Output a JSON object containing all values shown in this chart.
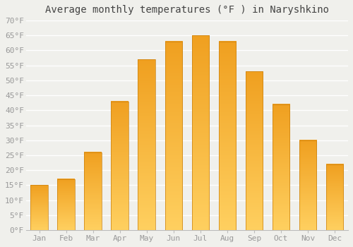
{
  "title": "Average monthly temperatures (°F ) in Naryshkino",
  "months": [
    "Jan",
    "Feb",
    "Mar",
    "Apr",
    "May",
    "Jun",
    "Jul",
    "Aug",
    "Sep",
    "Oct",
    "Nov",
    "Dec"
  ],
  "values": [
    15,
    17,
    26,
    43,
    57,
    63,
    65,
    63,
    53,
    42,
    30,
    22
  ],
  "bar_color_bottom": "#FFD060",
  "bar_color_top": "#F0A020",
  "bar_edge_color": "#C88010",
  "ylim": [
    0,
    70
  ],
  "yticks": [
    0,
    5,
    10,
    15,
    20,
    25,
    30,
    35,
    40,
    45,
    50,
    55,
    60,
    65,
    70
  ],
  "ytick_labels": [
    "0°F",
    "5°F",
    "10°F",
    "15°F",
    "20°F",
    "25°F",
    "30°F",
    "35°F",
    "40°F",
    "45°F",
    "50°F",
    "55°F",
    "60°F",
    "65°F",
    "70°F"
  ],
  "bg_color": "#F0F0EC",
  "grid_color": "#FFFFFF",
  "title_fontsize": 10,
  "tick_fontsize": 8,
  "font_family": "monospace"
}
